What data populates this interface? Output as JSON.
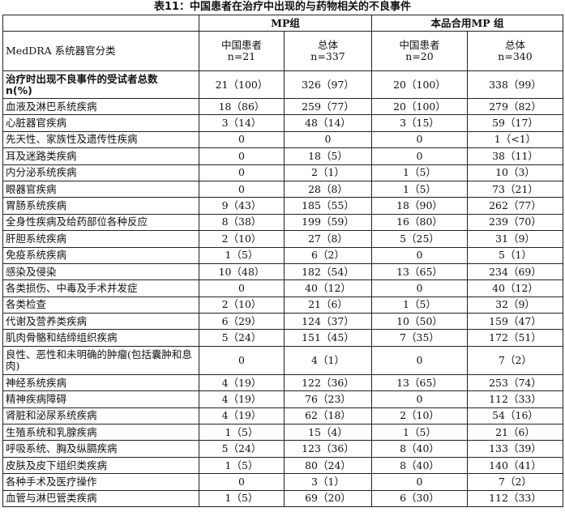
{
  "title": "表11：中国患者在治疗中出现的与药物相关的不良事件",
  "groups": [
    "MP组",
    "本品合用MP 组"
  ],
  "header": {
    "row_label": "MedDRA 系统器官分类",
    "cols": [
      {
        "name": "中国患者",
        "n": "n=21"
      },
      {
        "name": "总体",
        "n": "n=337"
      },
      {
        "name": "中国患者",
        "n": "n=20"
      },
      {
        "name": "总体",
        "n": "n=340"
      }
    ]
  },
  "total": {
    "label": "治疗时出现不良事件的受试者总数",
    "sub": "n(%)",
    "values": [
      "21（100）",
      "326（97）",
      "20（100）",
      "338（99）"
    ]
  },
  "rows": [
    {
      "label": "血液及淋巴系统疾病",
      "values": [
        "18（86）",
        "259（77）",
        "20（100）",
        "279（82）"
      ]
    },
    {
      "label": "心脏器官疾病",
      "values": [
        "3（14）",
        "48（14）",
        "3（15）",
        "59（17）"
      ]
    },
    {
      "label": "先天性、家族性及遗传性疾病",
      "values": [
        "0",
        "0",
        "0",
        "1（<1）"
      ]
    },
    {
      "label": "耳及迷路类疾病",
      "values": [
        "0",
        "18（5）",
        "0",
        "38（11）"
      ]
    },
    {
      "label": "内分泌系统疾病",
      "values": [
        "0",
        "2（1）",
        "1（5）",
        "10（3）"
      ]
    },
    {
      "label": "眼器官疾病",
      "values": [
        "0",
        "28（8）",
        "1（5）",
        "73（21）"
      ]
    },
    {
      "label": "胃肠系统疾病",
      "values": [
        "9（43）",
        "185（55）",
        "18（90）",
        "262（77）"
      ]
    },
    {
      "label": "全身性疾病及给药部位各种反应",
      "values": [
        "8（38）",
        "199（59）",
        "16（80）",
        "239（70）"
      ]
    },
    {
      "label": "肝胆系统疾病",
      "values": [
        "2（10）",
        "27（8）",
        "5（25）",
        "31（9）"
      ]
    },
    {
      "label": "免疫系统疾病",
      "values": [
        "1（5）",
        "6（2）",
        "0",
        "5（1）"
      ]
    },
    {
      "label": "感染及侵染",
      "values": [
        "10（48）",
        "182（54）",
        "13（65）",
        "234（69）"
      ]
    },
    {
      "label": "各类损伤、中毒及手术并发症",
      "values": [
        "0",
        "40（12）",
        "0",
        "40（12）"
      ]
    },
    {
      "label": "各类检查",
      "values": [
        "2（10）",
        "21（6）",
        "1（5）",
        "32（9）"
      ]
    },
    {
      "label": "代谢及营养类疾病",
      "values": [
        "6（29）",
        "124（37）",
        "10（50）",
        "159（47）"
      ]
    },
    {
      "label": "肌肉骨骼和结缔组织疾病",
      "values": [
        "5（24）",
        "151（45）",
        "7（35）",
        "172（51）"
      ]
    },
    {
      "label": "良性、恶性和未明确的肿瘤(包括囊肿和息肉)",
      "values": [
        "0",
        "4（1）",
        "0",
        "7（2）"
      ]
    },
    {
      "label": "神经系统疾病",
      "values": [
        "4（19）",
        "122（36）",
        "13（65）",
        "253（74）"
      ]
    },
    {
      "label": "精神疾病障碍",
      "values": [
        "4（19）",
        "76（23）",
        "0",
        "112（33）"
      ]
    },
    {
      "label": "肾脏和泌尿系统疾病",
      "values": [
        "4（19）",
        "62（18）",
        "2（10）",
        "54（16）"
      ]
    },
    {
      "label": "生殖系统和乳腺疾病",
      "values": [
        "1（5）",
        "15（4）",
        "1（5）",
        "21（6）"
      ]
    },
    {
      "label": "呼吸系统、胸及纵膈疾病",
      "values": [
        "5（24）",
        "123（36）",
        "8（40）",
        "133（39）"
      ]
    },
    {
      "label": "皮肤及皮下组织类疾病",
      "values": [
        "1（5）",
        "80（24）",
        "8（40）",
        "140（41）"
      ]
    },
    {
      "label": "各种手术及医疗操作",
      "values": [
        "0",
        "3（1）",
        "0",
        "7（2）"
      ]
    },
    {
      "label": "血管与淋巴管类疾病",
      "values": [
        "1（5）",
        "69（20）",
        "6（30）",
        "112（33）"
      ]
    }
  ]
}
